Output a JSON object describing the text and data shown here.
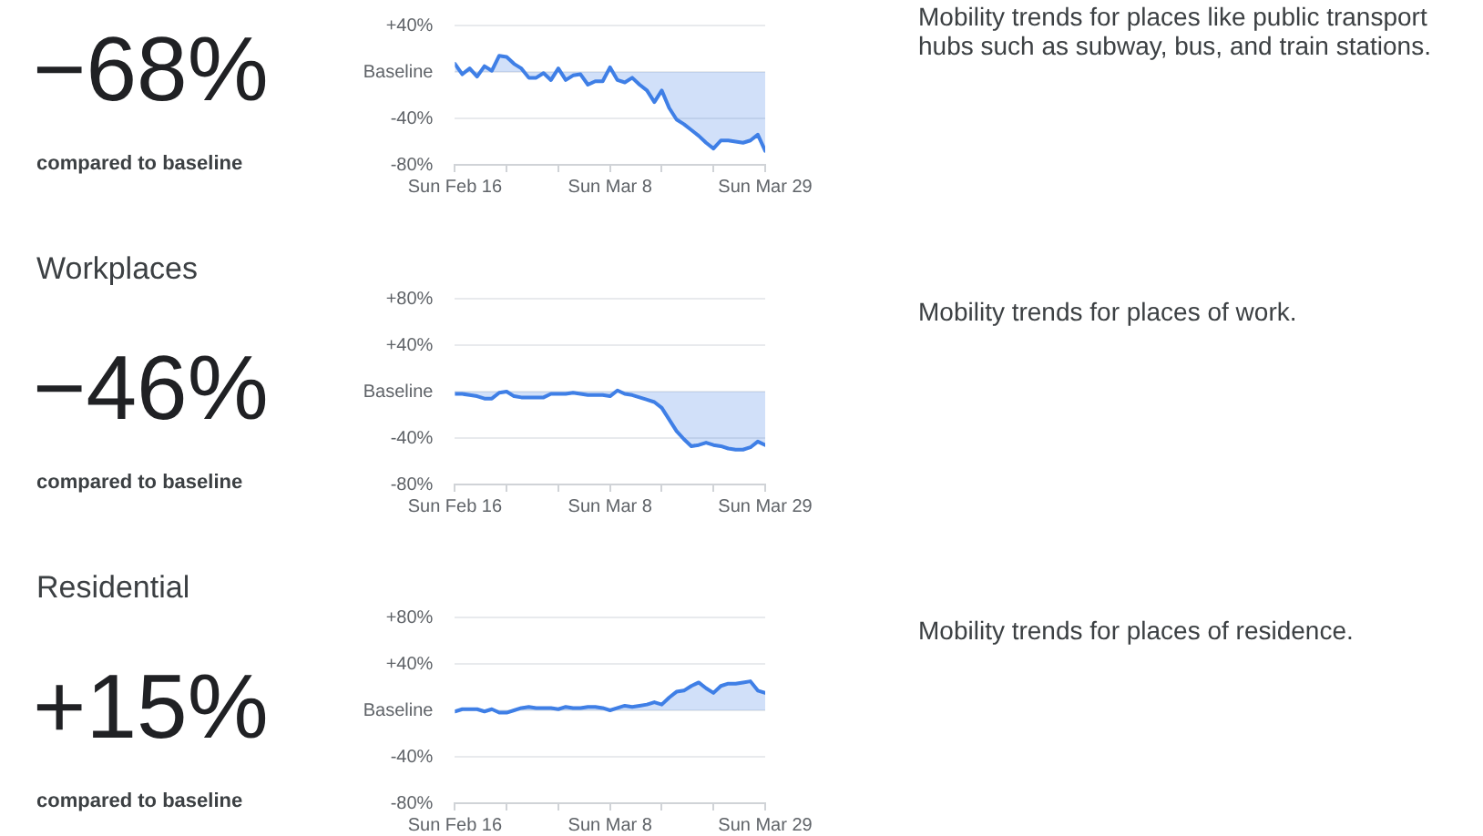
{
  "chart_data": [
    {
      "type": "area",
      "color": "#3f7fe6",
      "grid": "y",
      "x": [
        "--02-16",
        "--02-17",
        "--02-18",
        "--02-19",
        "--02-20",
        "--02-21",
        "--02-22",
        "--02-23",
        "--02-24",
        "--02-25",
        "--02-26",
        "--02-27",
        "--02-28",
        "--02-29",
        "--03-01",
        "--03-02",
        "--03-03",
        "--03-04",
        "--03-05",
        "--03-06",
        "--03-07",
        "--03-08",
        "--03-09",
        "--03-10",
        "--03-11",
        "--03-12",
        "--03-13",
        "--03-14",
        "--03-15",
        "--03-16",
        "--03-17",
        "--03-18",
        "--03-19",
        "--03-20",
        "--03-21",
        "--03-22",
        "--03-23",
        "--03-24",
        "--03-25",
        "--03-26",
        "--03-27",
        "--03-28",
        "--03-29"
      ],
      "values": [
        7,
        -2,
        3,
        -4,
        5,
        1,
        14,
        13,
        7,
        3,
        -5,
        -5,
        -1,
        -7,
        3,
        -7,
        -3,
        -2,
        -11,
        -8,
        -8,
        4,
        -7,
        -9,
        -5,
        -11,
        -16,
        -26,
        -16,
        -31,
        -41,
        -45,
        -50,
        -55,
        -61,
        -66,
        -59,
        -59,
        -60,
        -61,
        -59,
        -54,
        -68
      ],
      "xlim": [
        "--02-16",
        "--03-29"
      ],
      "xticks": [
        {
          "value": "--02-16",
          "label": "Sun Feb 16"
        },
        {
          "value": "--02-23",
          "label": null
        },
        {
          "value": "--03-01",
          "label": null
        },
        {
          "value": "--03-08",
          "label": "Sun Mar 8"
        },
        {
          "value": "--03-15",
          "label": null
        },
        {
          "value": "--03-22",
          "label": null
        },
        {
          "value": "--03-29",
          "label": "Sun Mar 29"
        }
      ],
      "ylim": [
        -80,
        40
      ],
      "yticks": [
        {
          "value": 40,
          "label": "+40%"
        },
        {
          "value": 0,
          "label": "Baseline"
        },
        {
          "value": -40,
          "label": "-40%"
        },
        {
          "value": -80,
          "label": "-80%"
        }
      ],
      "annotations": [
        "−68%",
        "compared to baseline",
        "Mobility trends for places like public transport hubs such as subway, bus, and train stations."
      ]
    },
    {
      "type": "area",
      "title": "Workplaces",
      "color": "#3f7fe6",
      "grid": "y",
      "x": [
        "--02-16",
        "--02-17",
        "--02-18",
        "--02-19",
        "--02-20",
        "--02-21",
        "--02-22",
        "--02-23",
        "--02-24",
        "--02-25",
        "--02-26",
        "--02-27",
        "--02-28",
        "--02-29",
        "--03-01",
        "--03-02",
        "--03-03",
        "--03-04",
        "--03-05",
        "--03-06",
        "--03-07",
        "--03-08",
        "--03-09",
        "--03-10",
        "--03-11",
        "--03-12",
        "--03-13",
        "--03-14",
        "--03-15",
        "--03-16",
        "--03-17",
        "--03-18",
        "--03-19",
        "--03-20",
        "--03-21",
        "--03-22",
        "--03-23",
        "--03-24",
        "--03-25",
        "--03-26",
        "--03-27",
        "--03-28",
        "--03-29"
      ],
      "values": [
        -2,
        -2,
        -3,
        -4,
        -6,
        -6,
        -1,
        0,
        -4,
        -5,
        -5,
        -5,
        -5,
        -2,
        -2,
        -2,
        -1,
        -2,
        -3,
        -3,
        -3,
        -4,
        1,
        -2,
        -3,
        -5,
        -7,
        -9,
        -14,
        -24,
        -34,
        -41,
        -47,
        -46,
        -44,
        -46,
        -47,
        -49,
        -50,
        -50,
        -48,
        -43,
        -46
      ],
      "xlim": [
        "--02-16",
        "--03-29"
      ],
      "xticks": [
        {
          "value": "--02-16",
          "label": "Sun Feb 16"
        },
        {
          "value": "--02-23",
          "label": null
        },
        {
          "value": "--03-01",
          "label": null
        },
        {
          "value": "--03-08",
          "label": "Sun Mar 8"
        },
        {
          "value": "--03-15",
          "label": null
        },
        {
          "value": "--03-22",
          "label": null
        },
        {
          "value": "--03-29",
          "label": "Sun Mar 29"
        }
      ],
      "ylim": [
        -80,
        80
      ],
      "yticks": [
        {
          "value": 80,
          "label": "+80%"
        },
        {
          "value": 40,
          "label": "+40%"
        },
        {
          "value": 0,
          "label": "Baseline"
        },
        {
          "value": -40,
          "label": "-40%"
        },
        {
          "value": -80,
          "label": "-80%"
        }
      ],
      "annotations": [
        "−46%",
        "compared to baseline",
        "Mobility trends for places of work."
      ]
    },
    {
      "type": "area",
      "title": "Residential",
      "color": "#3f7fe6",
      "grid": "y",
      "x": [
        "--02-16",
        "--02-17",
        "--02-18",
        "--02-19",
        "--02-20",
        "--02-21",
        "--02-22",
        "--02-23",
        "--02-24",
        "--02-25",
        "--02-26",
        "--02-27",
        "--02-28",
        "--02-29",
        "--03-01",
        "--03-02",
        "--03-03",
        "--03-04",
        "--03-05",
        "--03-06",
        "--03-07",
        "--03-08",
        "--03-09",
        "--03-10",
        "--03-11",
        "--03-12",
        "--03-13",
        "--03-14",
        "--03-15",
        "--03-16",
        "--03-17",
        "--03-18",
        "--03-19",
        "--03-20",
        "--03-21",
        "--03-22",
        "--03-23",
        "--03-24",
        "--03-25",
        "--03-26",
        "--03-27",
        "--03-28",
        "--03-29"
      ],
      "values": [
        -1,
        1,
        1,
        1,
        -1,
        1,
        -2,
        -2,
        0,
        2,
        3,
        2,
        2,
        2,
        1,
        3,
        2,
        2,
        3,
        3,
        2,
        0,
        2,
        4,
        3,
        4,
        5,
        7,
        5,
        11,
        16,
        17,
        21,
        24,
        19,
        15,
        21,
        23,
        23,
        24,
        25,
        17,
        15
      ],
      "xlim": [
        "--02-16",
        "--03-29"
      ],
      "xticks": [
        {
          "value": "--02-16",
          "label": "Sun Feb 16"
        },
        {
          "value": "--02-23",
          "label": null
        },
        {
          "value": "--03-01",
          "label": null
        },
        {
          "value": "--03-08",
          "label": "Sun Mar 8"
        },
        {
          "value": "--03-15",
          "label": null
        },
        {
          "value": "--03-22",
          "label": null
        },
        {
          "value": "--03-29",
          "label": "Sun Mar 29"
        }
      ],
      "ylim": [
        -80,
        80
      ],
      "yticks": [
        {
          "value": 80,
          "label": "+80%"
        },
        {
          "value": 40,
          "label": "+40%"
        },
        {
          "value": 0,
          "label": "Baseline"
        },
        {
          "value": -40,
          "label": "-40%"
        },
        {
          "value": -80,
          "label": "-80%"
        }
      ],
      "annotations": [
        "+15%",
        "compared to baseline",
        "Mobility trends for places of residence."
      ]
    }
  ]
}
